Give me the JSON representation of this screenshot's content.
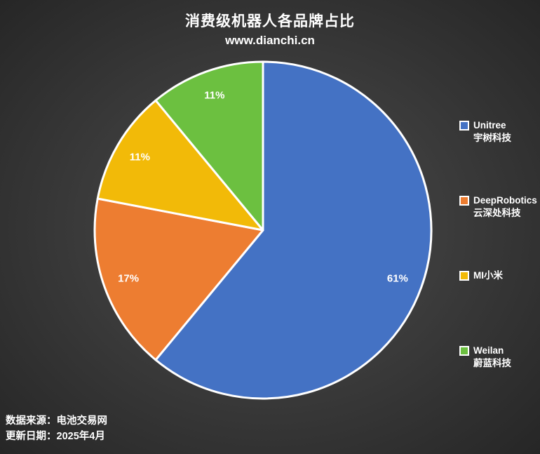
{
  "header": {
    "title": "消费级机器人各品牌占比",
    "subtitle": "www.dianchi.cn"
  },
  "chart_data": {
    "type": "pie",
    "title": "消费级机器人各品牌占比",
    "subtitle": "www.dianchi.cn",
    "start_angle": "12 o'clock, clockwise",
    "legend_position": "right",
    "data_labels": "percent inside slices",
    "series": [
      {
        "name": "Unitree",
        "name_cn": "宇树科技",
        "value": 61,
        "label": "61%",
        "color": "#4472C4"
      },
      {
        "name": "DeepRobotics",
        "name_cn": "云深处科技",
        "value": 17,
        "label": "17%",
        "color": "#ED7D31"
      },
      {
        "name": "MI小米",
        "name_cn": "",
        "value": 11,
        "label": "11%",
        "color": "#F2BA08"
      },
      {
        "name": "Weilan",
        "name_cn": "蔚蓝科技",
        "value": 11,
        "label": "11%",
        "color": "#6CC040"
      }
    ]
  },
  "footer": {
    "source": "数据来源：电池交易网",
    "updated": "更新日期：2025年4月"
  },
  "colors": {
    "background_center": "#4b4b4b",
    "background_edge": "#262626",
    "slice_border": "#ffffff",
    "text": "#ffffff"
  }
}
